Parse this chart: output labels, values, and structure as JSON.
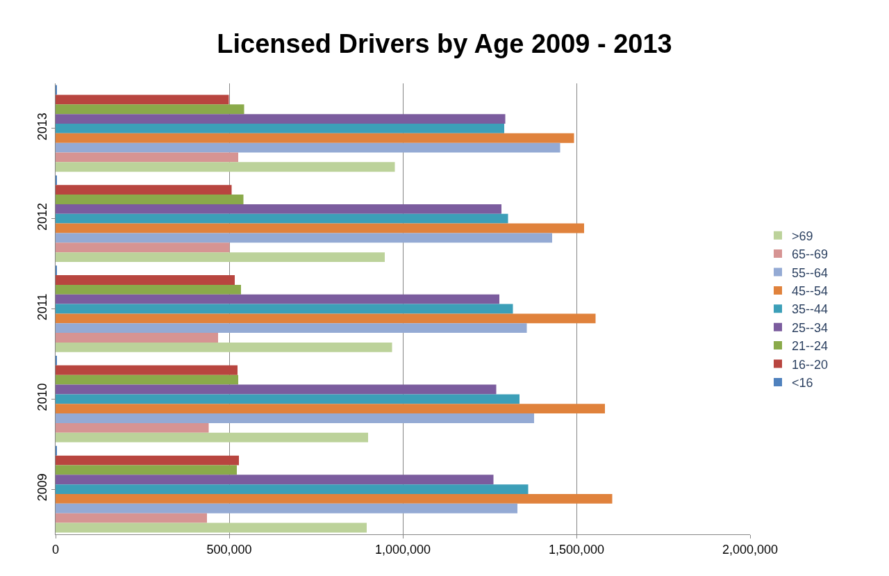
{
  "chart_data": {
    "type": "bar",
    "orientation": "horizontal",
    "title": "Licensed Drivers by Age 2009 - 2013",
    "categories": [
      "2013",
      "2012",
      "2011",
      "2010",
      "2009"
    ],
    "series": [
      {
        "name": "<16",
        "color": "#4f81bd",
        "values": [
          4000,
          4000,
          4000,
          4000,
          4000
        ]
      },
      {
        "name": "16--20",
        "color": "#b8453f",
        "values": [
          499000,
          507000,
          516000,
          524000,
          528000
        ]
      },
      {
        "name": "21--24",
        "color": "#8aaa4a",
        "values": [
          543000,
          541000,
          534000,
          526000,
          522000
        ]
      },
      {
        "name": "25--34",
        "color": "#7b5c9e",
        "values": [
          1295000,
          1284000,
          1278000,
          1269000,
          1261000
        ]
      },
      {
        "name": "35--44",
        "color": "#3c9fb8",
        "values": [
          1292000,
          1303000,
          1317000,
          1336000,
          1361000
        ]
      },
      {
        "name": "45--54",
        "color": "#e0823c",
        "values": [
          1493000,
          1522000,
          1555000,
          1582000,
          1603000
        ]
      },
      {
        "name": "55--64",
        "color": "#94aad4",
        "values": [
          1453000,
          1430000,
          1357000,
          1378000,
          1330000
        ]
      },
      {
        "name": "65--69",
        "color": "#d69493",
        "values": [
          526000,
          501000,
          468000,
          441000,
          436000
        ]
      },
      {
        "name": ">69",
        "color": "#bcd29a",
        "values": [
          977000,
          948000,
          969000,
          900000,
          896000
        ]
      }
    ],
    "xlim": [
      0,
      2000000
    ],
    "xticks": [
      {
        "value": 0,
        "label": "0"
      },
      {
        "value": 500000,
        "label": "500,000"
      },
      {
        "value": 1000000,
        "label": "1,000,000"
      },
      {
        "value": 1500000,
        "label": "1,500,000"
      },
      {
        "value": 2000000,
        "label": "2,000,000"
      }
    ],
    "grid": "x",
    "legend": "right"
  }
}
